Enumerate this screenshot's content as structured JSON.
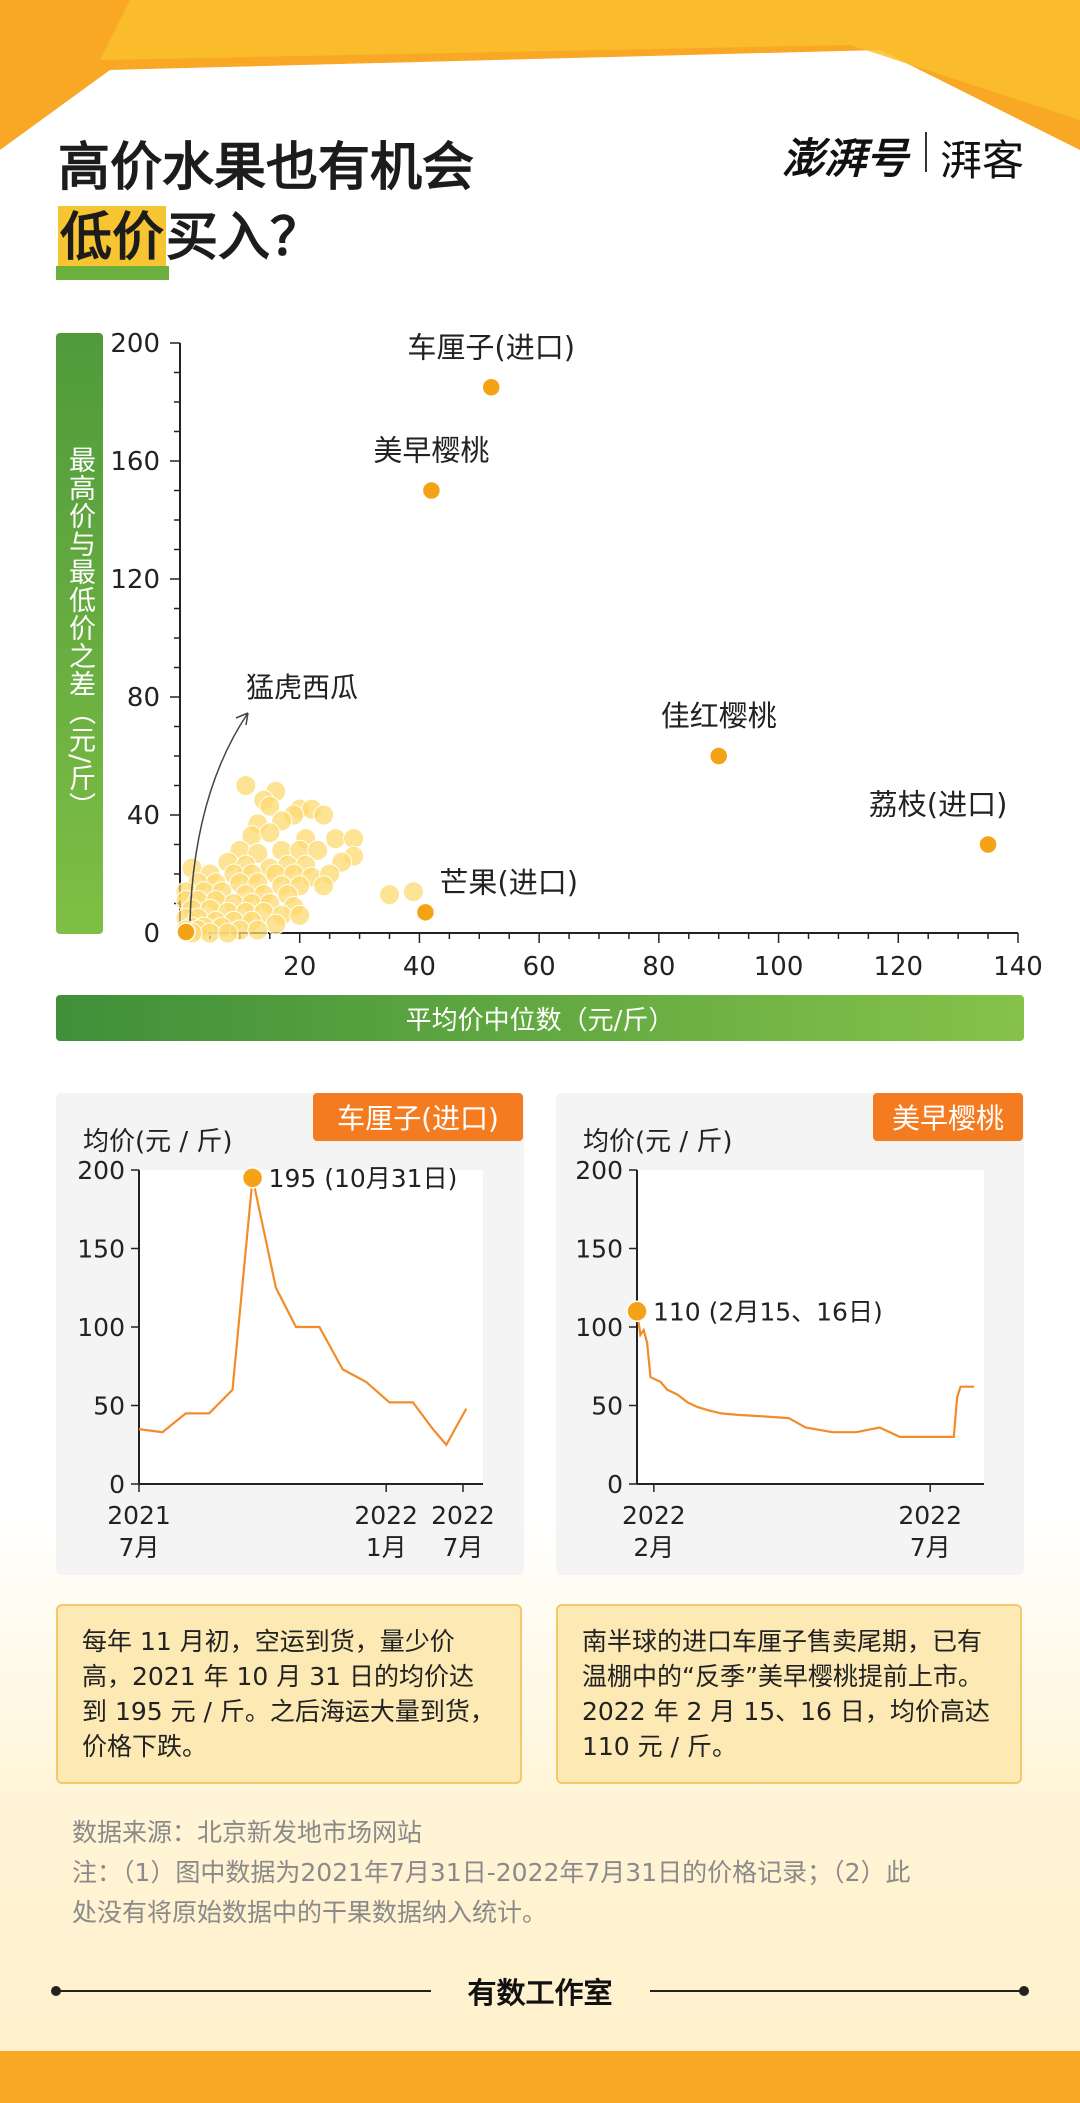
{
  "title": {
    "line1": "高价水果也有机会",
    "highlight": "低价",
    "rest": "买入？"
  },
  "brand": {
    "logo": "澎湃号",
    "sub": "湃客"
  },
  "colors": {
    "accent": "#f9a825",
    "orange": "#f47b20",
    "green": "#5ea53e",
    "point": "#f5a316",
    "cloud": "#fcd970"
  },
  "chart_data": [
    {
      "type": "scatter",
      "title": "",
      "xlabel": "平均价中位数（元/斤）",
      "ylabel": "最高价与最低价之差（元/斤）",
      "xlim": [
        0,
        140
      ],
      "ylim": [
        0,
        200
      ],
      "xticks": [
        20,
        40,
        60,
        80,
        100,
        120,
        140
      ],
      "yticks": [
        0,
        40,
        80,
        120,
        160,
        200
      ],
      "labeled_points": [
        {
          "name": "车厘子(进口)",
          "x": 52,
          "y": 185
        },
        {
          "name": "美早樱桃",
          "x": 42,
          "y": 150
        },
        {
          "name": "佳红樱桃",
          "x": 90,
          "y": 60
        },
        {
          "name": "荔枝(进口)",
          "x": 135,
          "y": 30
        },
        {
          "name": "芒果(进口)",
          "x": 41,
          "y": 7
        }
      ],
      "annotation": {
        "text": "猛虎西瓜",
        "x": 1,
        "y": 0
      },
      "cloud_points": [
        [
          11,
          50
        ],
        [
          16,
          48
        ],
        [
          14,
          45
        ],
        [
          15,
          43
        ],
        [
          20,
          42
        ],
        [
          22,
          42
        ],
        [
          19,
          40
        ],
        [
          24,
          40
        ],
        [
          13,
          37
        ],
        [
          17,
          38
        ],
        [
          12,
          33
        ],
        [
          15,
          34
        ],
        [
          21,
          32
        ],
        [
          26,
          32
        ],
        [
          29,
          32
        ],
        [
          10,
          28
        ],
        [
          13,
          27
        ],
        [
          17,
          28
        ],
        [
          20,
          28
        ],
        [
          23,
          28
        ],
        [
          29,
          26
        ],
        [
          8,
          24
        ],
        [
          11,
          23
        ],
        [
          15,
          22
        ],
        [
          18,
          23
        ],
        [
          21,
          23
        ],
        [
          27,
          24
        ],
        [
          2,
          22
        ],
        [
          5,
          20
        ],
        [
          9,
          20
        ],
        [
          12,
          20
        ],
        [
          16,
          20
        ],
        [
          19,
          20
        ],
        [
          22,
          19
        ],
        [
          25,
          20
        ],
        [
          3,
          17
        ],
        [
          6,
          17
        ],
        [
          10,
          17
        ],
        [
          13,
          17
        ],
        [
          17,
          16
        ],
        [
          20,
          16
        ],
        [
          24,
          16
        ],
        [
          35,
          13
        ],
        [
          39,
          14
        ],
        [
          1,
          14
        ],
        [
          4,
          14
        ],
        [
          7,
          14
        ],
        [
          11,
          13
        ],
        [
          14,
          13
        ],
        [
          18,
          13
        ],
        [
          1,
          11
        ],
        [
          3,
          11
        ],
        [
          6,
          11
        ],
        [
          9,
          10
        ],
        [
          12,
          10
        ],
        [
          15,
          10
        ],
        [
          19,
          9
        ],
        [
          2,
          8
        ],
        [
          5,
          8
        ],
        [
          8,
          7
        ],
        [
          11,
          7
        ],
        [
          14,
          7
        ],
        [
          17,
          6
        ],
        [
          20,
          6
        ],
        [
          1,
          5
        ],
        [
          3,
          5
        ],
        [
          6,
          4
        ],
        [
          9,
          4
        ],
        [
          12,
          4
        ],
        [
          16,
          3
        ],
        [
          2,
          2
        ],
        [
          4,
          2
        ],
        [
          7,
          2
        ],
        [
          10,
          1
        ],
        [
          13,
          1
        ],
        [
          3,
          1
        ],
        [
          5,
          0
        ],
        [
          8,
          0
        ],
        [
          1,
          1
        ],
        [
          2,
          0
        ]
      ]
    },
    {
      "type": "line",
      "name": "车厘子(进口)",
      "unit": "均价(元 / 斤)",
      "ylim": [
        0,
        200
      ],
      "yticks": [
        0,
        50,
        100,
        150,
        200
      ],
      "xlabels": [
        {
          "t": 0,
          "line1": "2021",
          "line2": "7月"
        },
        {
          "t": 0.74,
          "line1": "2022",
          "line2": "1月"
        },
        {
          "t": 0.97,
          "line1": "2022",
          "line2": "7月"
        }
      ],
      "series": [
        {
          "t": 0.0,
          "v": 35
        },
        {
          "t": 0.07,
          "v": 33
        },
        {
          "t": 0.14,
          "v": 45
        },
        {
          "t": 0.21,
          "v": 45
        },
        {
          "t": 0.28,
          "v": 60
        },
        {
          "t": 0.34,
          "v": 195
        },
        {
          "t": 0.41,
          "v": 125
        },
        {
          "t": 0.47,
          "v": 100
        },
        {
          "t": 0.54,
          "v": 100
        },
        {
          "t": 0.61,
          "v": 73
        },
        {
          "t": 0.68,
          "v": 65
        },
        {
          "t": 0.75,
          "v": 52
        },
        {
          "t": 0.82,
          "v": 52
        },
        {
          "t": 0.88,
          "v": 35
        },
        {
          "t": 0.92,
          "v": 25
        },
        {
          "t": 0.98,
          "v": 48
        }
      ],
      "peak": {
        "t": 0.34,
        "v": 195,
        "label": "195 (10月31日)"
      }
    },
    {
      "type": "line",
      "name": "美早樱桃",
      "unit": "均价(元 / 斤)",
      "ylim": [
        0,
        200
      ],
      "yticks": [
        0,
        50,
        100,
        150,
        200
      ],
      "xlabels": [
        {
          "t": 0.05,
          "line1": "2022",
          "line2": "2月"
        },
        {
          "t": 0.87,
          "line1": "2022",
          "line2": "7月"
        }
      ],
      "series": [
        {
          "t": 0.0,
          "v": 110
        },
        {
          "t": 0.01,
          "v": 95
        },
        {
          "t": 0.02,
          "v": 98
        },
        {
          "t": 0.03,
          "v": 90
        },
        {
          "t": 0.04,
          "v": 68
        },
        {
          "t": 0.07,
          "v": 65
        },
        {
          "t": 0.09,
          "v": 60
        },
        {
          "t": 0.12,
          "v": 57
        },
        {
          "t": 0.15,
          "v": 52
        },
        {
          "t": 0.18,
          "v": 49
        },
        {
          "t": 0.21,
          "v": 47
        },
        {
          "t": 0.25,
          "v": 45
        },
        {
          "t": 0.3,
          "v": 44
        },
        {
          "t": 0.38,
          "v": 43
        },
        {
          "t": 0.45,
          "v": 42
        },
        {
          "t": 0.5,
          "v": 36
        },
        {
          "t": 0.58,
          "v": 33
        },
        {
          "t": 0.65,
          "v": 33
        },
        {
          "t": 0.72,
          "v": 36
        },
        {
          "t": 0.78,
          "v": 30
        },
        {
          "t": 0.94,
          "v": 30
        },
        {
          "t": 0.95,
          "v": 55
        },
        {
          "t": 0.96,
          "v": 62
        },
        {
          "t": 1.0,
          "v": 62
        }
      ],
      "peak": {
        "t": 0.0,
        "v": 110,
        "label": "110 (2月15、16日)"
      }
    }
  ],
  "notes": {
    "left": "每年 11 月初，空运到货，量少价高，2021 年 10 月 31 日的均价达到 195 元 / 斤。之后海运大量到货，价格下跌。",
    "right": "南半球的进口车厘子售卖尾期，已有温棚中的“反季”美早樱桃提前上市。2022 年 2 月 15、16 日，均价高达 110 元 / 斤。"
  },
  "source": {
    "line1": "数据来源：北京新发地市场网站",
    "line2": "注：（1）图中数据为2021年7月31日-2022年7月31日的价格记录；（2）此",
    "line3": "处没有将原始数据中的干果数据纳入统计。"
  },
  "footer": "有数工作室"
}
